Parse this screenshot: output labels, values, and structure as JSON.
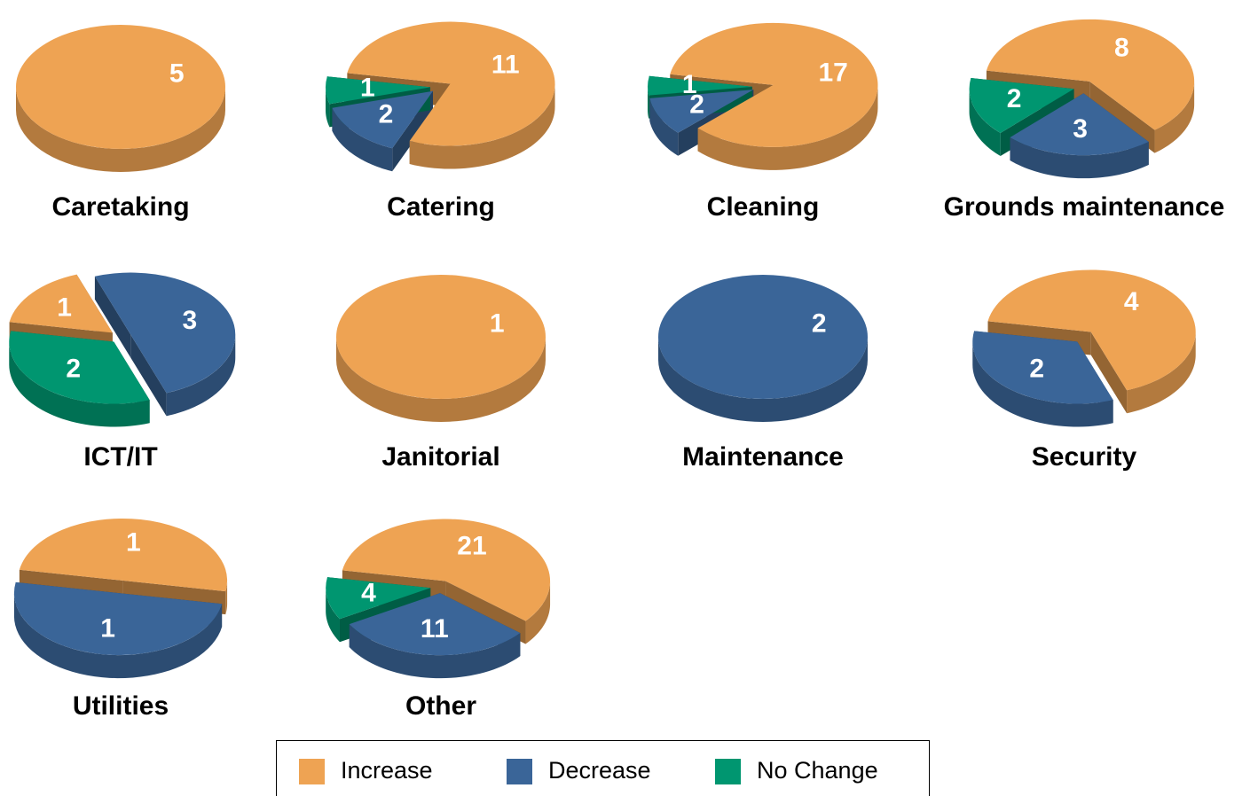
{
  "chart_data": [
    {
      "type": "pie",
      "title": "Caretaking",
      "categories": [
        "Increase"
      ],
      "values": [
        5
      ],
      "colors": [
        "#EEA353"
      ]
    },
    {
      "type": "pie",
      "title": "Catering",
      "categories": [
        "Increase",
        "Decrease",
        "No Change"
      ],
      "values": [
        11,
        2,
        1
      ],
      "colors": [
        "#EEA353",
        "#3A6598",
        "#009670"
      ]
    },
    {
      "type": "pie",
      "title": "Cleaning",
      "categories": [
        "Increase",
        "Decrease",
        "No Change"
      ],
      "values": [
        17,
        2,
        1
      ],
      "colors": [
        "#EEA353",
        "#3A6598",
        "#009670"
      ]
    },
    {
      "type": "pie",
      "title": "Grounds maintenance",
      "categories": [
        "Increase",
        "Decrease",
        "No Change"
      ],
      "values": [
        8,
        3,
        2
      ],
      "colors": [
        "#EEA353",
        "#3A6598",
        "#009670"
      ]
    },
    {
      "type": "pie",
      "title": "ICT/IT",
      "categories": [
        "Increase",
        "Decrease",
        "No Change"
      ],
      "values": [
        1,
        3,
        2
      ],
      "colors": [
        "#EEA353",
        "#3A6598",
        "#009670"
      ]
    },
    {
      "type": "pie",
      "title": "Janitorial",
      "categories": [
        "Increase"
      ],
      "values": [
        1
      ],
      "colors": [
        "#EEA353"
      ]
    },
    {
      "type": "pie",
      "title": "Maintenance",
      "categories": [
        "Decrease"
      ],
      "values": [
        2
      ],
      "colors": [
        "#3A6598"
      ]
    },
    {
      "type": "pie",
      "title": "Security",
      "categories": [
        "Increase",
        "Decrease"
      ],
      "values": [
        4,
        2
      ],
      "colors": [
        "#EEA353",
        "#3A6598"
      ]
    },
    {
      "type": "pie",
      "title": "Utilities",
      "categories": [
        "Increase",
        "Decrease"
      ],
      "values": [
        1,
        1
      ],
      "colors": [
        "#EEA353",
        "#3A6598"
      ]
    },
    {
      "type": "pie",
      "title": "Other",
      "categories": [
        "Increase",
        "Decrease",
        "No Change"
      ],
      "values": [
        21,
        11,
        4
      ],
      "colors": [
        "#EEA353",
        "#3A6598",
        "#009670"
      ]
    }
  ],
  "legend": {
    "labels": [
      "Increase",
      "Decrease",
      "No Change"
    ],
    "colors": [
      "#EEA353",
      "#3A6598",
      "#009670"
    ]
  }
}
